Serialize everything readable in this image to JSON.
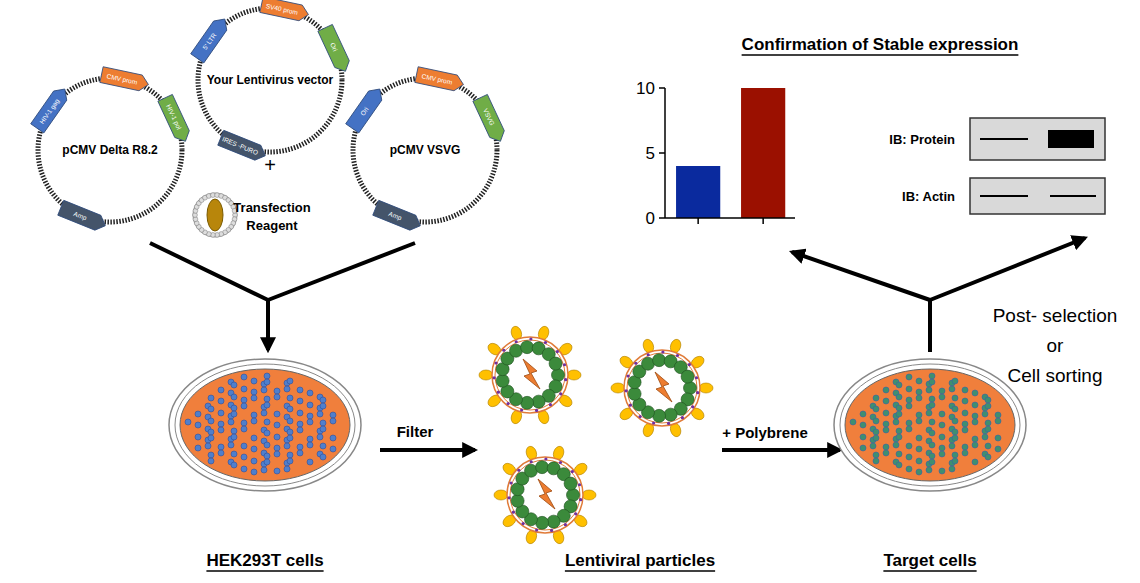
{
  "plasmids": [
    {
      "label": "pCMV Delta R8.2",
      "features": [
        "HIV-1 gag",
        "CMV prom",
        "HIV-1 pol",
        "Amp"
      ]
    },
    {
      "label": "Your Lentivirus vector",
      "features": [
        "5' LTR",
        "SV40 prom",
        "Ori",
        "IRES -PURO"
      ]
    },
    {
      "label": "pCMV VSVG",
      "features": [
        "Ori",
        "CMV prom",
        "VSVG",
        "Amp"
      ]
    }
  ],
  "plus": "+",
  "reagent": "Transfection Reagent",
  "steps": {
    "producer": "HEK293T cells",
    "filter": "Filter",
    "particles": "Lentiviral particles",
    "polybrene": "+ Polybrene",
    "target": "Target cells",
    "selection": [
      "Post- selection",
      "or",
      "Cell sorting"
    ]
  },
  "confirmation": {
    "title": "Confirmation of Stable expression",
    "blots": [
      "IB: Protein",
      "IB: Actin"
    ]
  },
  "chart_data": {
    "type": "bar",
    "categories": [
      null,
      null
    ],
    "values": [
      4,
      10
    ],
    "colors": [
      "#0a2a9e",
      "#9b1000"
    ],
    "ylim": [
      0,
      10
    ],
    "yticks": [
      0,
      5,
      10
    ]
  }
}
